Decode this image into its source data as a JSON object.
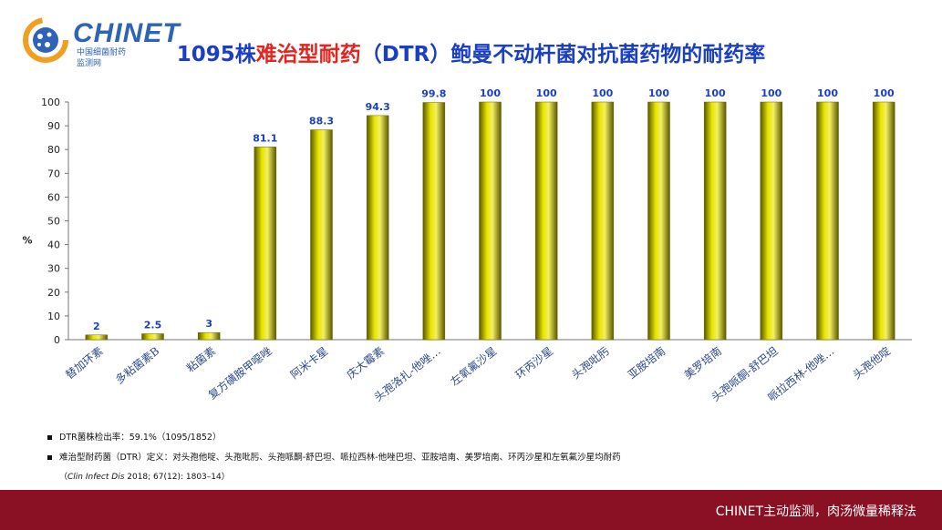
{
  "logo": {
    "text": "CHINET",
    "sub1": "中国细菌耐药",
    "sub2": "监测网"
  },
  "title": {
    "prefix": "1095株",
    "highlight": "难治型耐药",
    "suffix": "（DTR）鲍曼不动杆菌对抗菌药物的耐药率"
  },
  "colors": {
    "bar": "#e8e400",
    "bar_dark": "#5a5800",
    "label": "#1a3fc4",
    "footer": "#8a1024"
  },
  "chart_data": {
    "type": "bar",
    "ylabel": "%",
    "ylim": [
      0,
      100
    ],
    "yticks": [
      0,
      10,
      20,
      30,
      40,
      50,
      60,
      70,
      80,
      90,
      100
    ],
    "grid": false,
    "categories": [
      "替加环素",
      "多粘菌素B",
      "粘菌素",
      "复方磺胺甲噁唑",
      "阿米卡星",
      "庆大霉素",
      "头孢洛扎-他唑…",
      "左氧氟沙星",
      "环丙沙星",
      "头孢吡肟",
      "亚胺培南",
      "美罗培南",
      "头孢哌酮-舒巴坦",
      "哌拉西林-他唑…",
      "头孢他啶"
    ],
    "values": [
      2,
      2.5,
      3,
      81.1,
      88.3,
      94.3,
      99.8,
      100,
      100,
      100,
      100,
      100,
      100,
      100,
      100
    ],
    "value_labels": [
      "2",
      "2.5",
      "3",
      "81.1",
      "88.3",
      "94.3",
      "99.8",
      "100",
      "100",
      "100",
      "100",
      "100",
      "100",
      "100",
      "100"
    ]
  },
  "notes": {
    "line1": "DTR菌株检出率：59.1%（1095/1852）",
    "line2": "难治型耐药菌（DTR）定义：对头孢他啶、头孢吡肟、头孢哌酮-舒巴坦、哌拉西林-他唑巴坦、亚胺培南、美罗培南、环丙沙星和左氧氟沙星均耐药",
    "ref_journal": "Clin Infect Dis",
    "ref_rest": " 2018; 67(12): 1803–14）",
    "ref_open": "（"
  },
  "footer": {
    "text": "CHINET主动监测，肉汤微量稀释法"
  }
}
